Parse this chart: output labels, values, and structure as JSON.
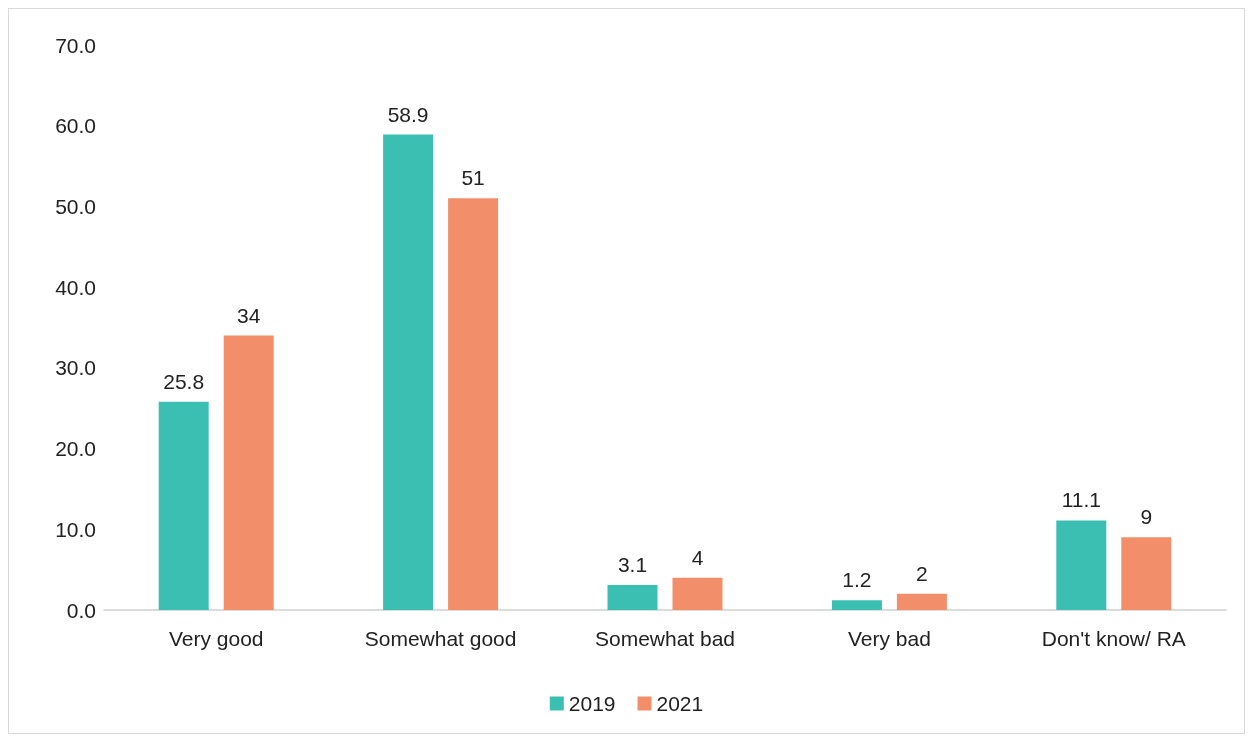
{
  "chart_data": {
    "type": "bar",
    "categories": [
      "Very good",
      "Somewhat good",
      "Somewhat bad",
      "Very bad",
      "Don't know/ RA"
    ],
    "series": [
      {
        "name": "2019",
        "color": "#3cbfb3",
        "values": [
          25.8,
          58.9,
          3.1,
          1.2,
          11.1
        ]
      },
      {
        "name": "2021",
        "color": "#f28e69",
        "values": [
          34,
          51,
          4,
          2,
          9
        ]
      }
    ],
    "ylim": [
      0,
      70
    ],
    "yticks": [
      {
        "value": 0,
        "label": "0.0"
      },
      {
        "value": 10,
        "label": "10.0"
      },
      {
        "value": 20,
        "label": "20.0"
      },
      {
        "value": 30,
        "label": "30.0"
      },
      {
        "value": 40,
        "label": "40.0"
      },
      {
        "value": 50,
        "label": "50.0"
      },
      {
        "value": 60,
        "label": "60.0"
      },
      {
        "value": 70,
        "label": "70.0"
      }
    ],
    "data_labels": true,
    "grid": false,
    "legend": "bottom"
  }
}
